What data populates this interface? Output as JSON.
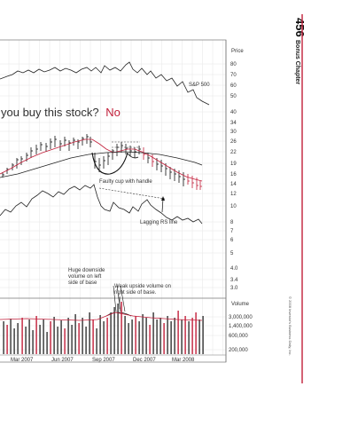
{
  "page": {
    "page_number": "456",
    "chapter_label": "Bonus Chapter",
    "copyright": "© 2008 Investor's Business Daily, Inc.",
    "accent_color": "#c21f3a"
  },
  "chart": {
    "question_prefix": "you buy this stock?",
    "question_answer": "No",
    "price_header": "Price",
    "volume_header": "Volume",
    "sp500_label": "S&P 500",
    "price_ticks": [
      "80",
      "70",
      "60",
      "50",
      "40",
      "34",
      "30",
      "26",
      "22",
      "19",
      "16",
      "14",
      "12",
      "10",
      "8",
      "7",
      "6",
      "5",
      "4.0",
      "3.4",
      "3.0"
    ],
    "volume_ticks": [
      "3,000,000",
      "1,400,000",
      "600,000",
      "200,000"
    ],
    "date_labels": [
      "Mar 2007",
      "Jun 2007",
      "Sep 2007",
      "Dec 2007",
      "Mar 2008"
    ],
    "annotations": {
      "cup": "Faulty cup with handle",
      "rs": "Lagging RS line",
      "downside_1": "Huge downside",
      "downside_2": "volume on left",
      "downside_3": "side of base",
      "upside_1": "Weak upside volume on",
      "upside_2": "right side of base."
    }
  },
  "chart_data": {
    "type": "line",
    "title": "",
    "x": [
      "Mar 2007",
      "Jun 2007",
      "Sep 2007",
      "Dec 2007",
      "Mar 2008"
    ],
    "series": [
      {
        "name": "S&P 500"
      },
      {
        "name": "Price"
      },
      {
        "name": "RS line"
      },
      {
        "name": "Volume"
      }
    ],
    "price_axis_ticks": [
      80,
      70,
      60,
      50,
      40,
      34,
      30,
      26,
      22,
      19,
      16,
      14,
      12,
      10,
      8,
      7,
      6,
      5,
      4.0,
      3.4,
      3.0
    ],
    "volume_axis_ticks": [
      3000000,
      1400000,
      600000,
      200000
    ],
    "grid": true
  }
}
